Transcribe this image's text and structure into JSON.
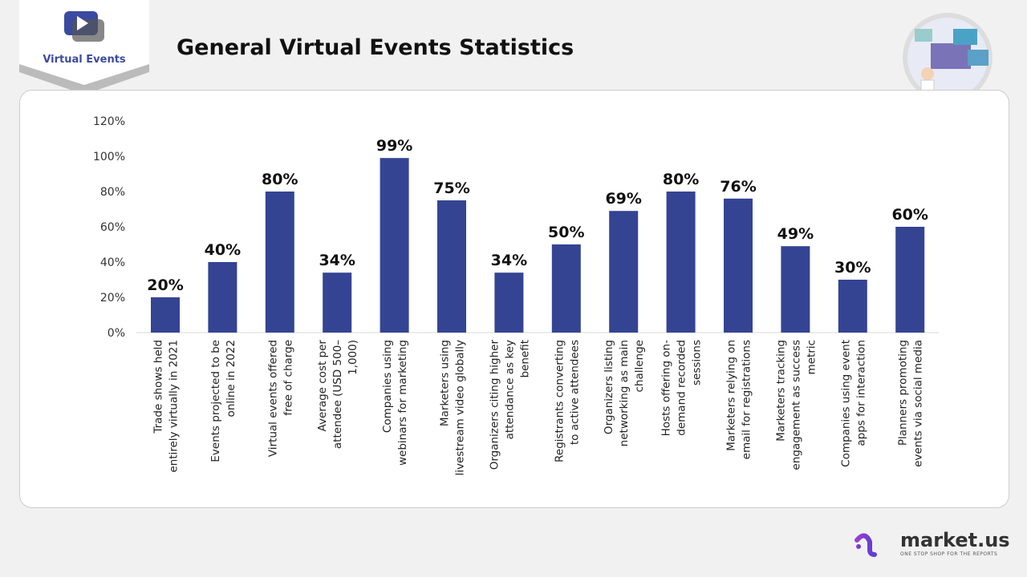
{
  "header": {
    "title": "General Virtual Events Statistics",
    "logo_text": "Virtual Events"
  },
  "brand": {
    "name": "market.us",
    "tagline": "ONE STOP SHOP FOR THE REPORTS"
  },
  "colors": {
    "bar": "#344493",
    "text": "#111111",
    "axis": "#d9d9d9"
  },
  "chart_data": {
    "type": "bar",
    "title": "",
    "xlabel": "",
    "ylabel": "",
    "ylim": [
      0,
      120
    ],
    "yticks": [
      "0%",
      "20%",
      "40%",
      "60%",
      "80%",
      "100%",
      "120%"
    ],
    "grid": false,
    "categories": [
      [
        "Trade shows held",
        "entirely virtually in 2021"
      ],
      [
        "Events projected to be",
        "online in 2022"
      ],
      [
        "Virtual events offered",
        "free of charge"
      ],
      [
        "Average cost per",
        "attendee (USD 500–",
        "1,000)"
      ],
      [
        "Companies using",
        "webinars for marketing"
      ],
      [
        "Marketers using",
        "livestream video globally"
      ],
      [
        "Organizers citing higher",
        "attendance as key",
        "benefit"
      ],
      [
        "Registrants converting",
        "to active attendees"
      ],
      [
        "Organizers listing",
        "networking as main",
        "challenge"
      ],
      [
        "Hosts offering on-",
        "demand recorded",
        "sessions"
      ],
      [
        "Marketers relying on",
        "email for registrations"
      ],
      [
        "Marketers tracking",
        "engagement as success",
        "metric"
      ],
      [
        "Companies using event",
        "apps for interaction"
      ],
      [
        "Planners promoting",
        "events via social media"
      ]
    ],
    "values": [
      20,
      40,
      80,
      34,
      99,
      75,
      34,
      50,
      69,
      80,
      76,
      49,
      30,
      60
    ],
    "data_labels": [
      "20%",
      "40%",
      "80%",
      "34%",
      "99%",
      "75%",
      "34%",
      "50%",
      "69%",
      "80%",
      "76%",
      "49%",
      "30%",
      "60%"
    ]
  }
}
